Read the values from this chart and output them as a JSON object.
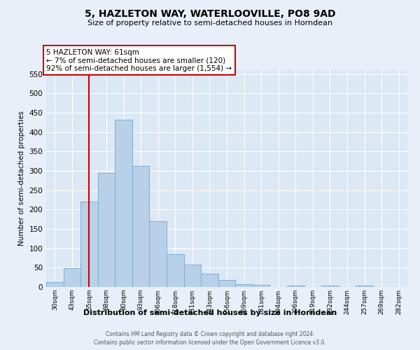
{
  "title": "5, HAZLETON WAY, WATERLOOVILLE, PO8 9AD",
  "subtitle": "Size of property relative to semi-detached houses in Horndean",
  "xlabel": "Distribution of semi-detached houses by size in Horndean",
  "ylabel": "Number of semi-detached properties",
  "bin_labels": [
    "30sqm",
    "43sqm",
    "55sqm",
    "68sqm",
    "80sqm",
    "93sqm",
    "106sqm",
    "118sqm",
    "131sqm",
    "143sqm",
    "156sqm",
    "169sqm",
    "181sqm",
    "194sqm",
    "206sqm",
    "219sqm",
    "232sqm",
    "244sqm",
    "257sqm",
    "269sqm",
    "282sqm"
  ],
  "bar_values": [
    13,
    48,
    220,
    295,
    432,
    312,
    170,
    85,
    58,
    35,
    18,
    8,
    5,
    0,
    4,
    0,
    3,
    0,
    4,
    0,
    0
  ],
  "bar_color": "#b8d0e8",
  "bar_edge_color": "#7aaed6",
  "vline_color": "#cc0000",
  "vline_position": 2.5,
  "annotation_title": "5 HAZLETON WAY: 61sqm",
  "annotation_line1": "← 7% of semi-detached houses are smaller (120)",
  "annotation_line2": "92% of semi-detached houses are larger (1,554) →",
  "annotation_box_color": "#cc0000",
  "ylim": [
    0,
    560
  ],
  "yticks": [
    0,
    50,
    100,
    150,
    200,
    250,
    300,
    350,
    400,
    450,
    500,
    550
  ],
  "footer1": "Contains HM Land Registry data © Crown copyright and database right 2024.",
  "footer2": "Contains public sector information licensed under the Open Government Licence v3.0.",
  "bg_color": "#e8eff8",
  "plot_bg_color": "#dce8f4",
  "grid_color": "#ffffff"
}
